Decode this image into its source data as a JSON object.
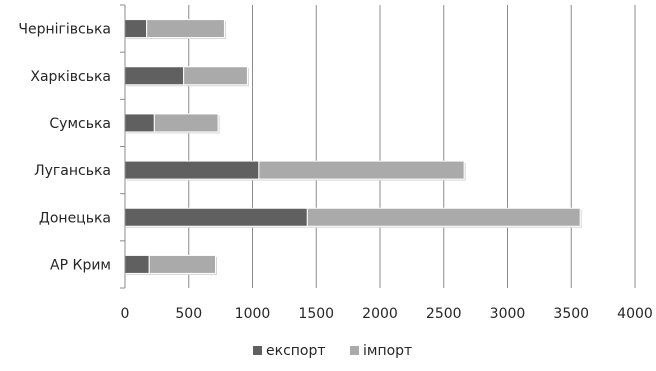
{
  "chart_data": {
    "type": "bar",
    "orientation": "horizontal",
    "stacked": true,
    "categories": [
      "Чернігівська",
      "Харківська",
      "Сумська",
      "Луганська",
      "Донецька",
      "АР Крим"
    ],
    "series": [
      {
        "name": "експорт",
        "values": [
          170,
          460,
          230,
          1050,
          1430,
          190
        ],
        "color": "#606060"
      },
      {
        "name": "імпорт",
        "values": [
          610,
          500,
          500,
          1610,
          2140,
          520
        ],
        "color": "#aaaaaa"
      }
    ],
    "xlim": [
      0,
      4000
    ],
    "xticks": [
      0,
      500,
      1000,
      1500,
      2000,
      2500,
      3000,
      3500,
      4000
    ],
    "xtick_labels": [
      "0",
      "500",
      "1000",
      "1500",
      "2000",
      "2500",
      "3000",
      "3500",
      "4000"
    ],
    "grid": "vertical",
    "legend": "bottom",
    "title": "",
    "xlabel": "",
    "ylabel": ""
  }
}
